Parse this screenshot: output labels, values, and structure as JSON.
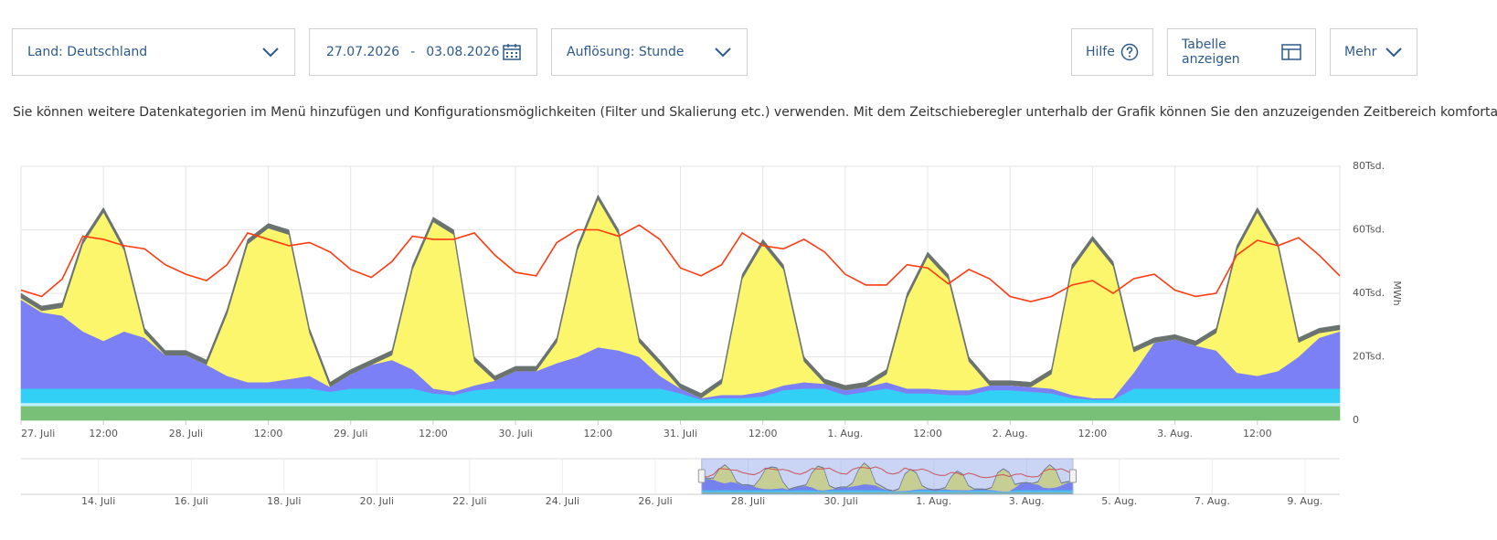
{
  "controls": {
    "country": "Land: Deutschland",
    "date_from": "27.07.2026",
    "date_separator": "-",
    "date_to": "03.08.2026",
    "resolution": "Auflösung: Stunde",
    "help": "Hilfe",
    "table": "Tabelle anzeigen",
    "more": "Mehr"
  },
  "info_text": "Sie können weitere Datenkategorien im Menü hinzufügen und Konfigurationsmöglichkeiten (Filter und Skalierung etc.) verwenden. Mit dem Zeitschieberegler unterhalb der Grafik können Sie den anzuzeigenden Zeitbereich komfortabel verschieben.",
  "chart_data": {
    "type": "area",
    "y_axis_label": "MWh",
    "grid": true,
    "stacked": true,
    "xlim": [
      0,
      192
    ],
    "xticks": [
      {
        "value": 0,
        "label": "27. Juli"
      },
      {
        "value": 12,
        "label": "12:00"
      },
      {
        "value": 24,
        "label": "28. Juli"
      },
      {
        "value": 36,
        "label": "12:00"
      },
      {
        "value": 48,
        "label": "29. Juli"
      },
      {
        "value": 60,
        "label": "12:00"
      },
      {
        "value": 72,
        "label": "30. Juli"
      },
      {
        "value": 84,
        "label": "12:00"
      },
      {
        "value": 96,
        "label": "31. Juli"
      },
      {
        "value": 108,
        "label": "12:00"
      },
      {
        "value": 120,
        "label": "1. Aug."
      },
      {
        "value": 132,
        "label": "12:00"
      },
      {
        "value": 144,
        "label": "2. Aug."
      },
      {
        "value": 156,
        "label": "12:00"
      },
      {
        "value": 168,
        "label": "3. Aug."
      },
      {
        "value": 180,
        "label": "12:00"
      }
    ],
    "ylim": [
      0,
      80000
    ],
    "yticks": [
      0,
      {
        "value": 20000,
        "label": "20Tsd."
      },
      {
        "value": 40000,
        "label": "40Tsd."
      },
      {
        "value": 60000,
        "label": "60Tsd."
      },
      {
        "value": 80000,
        "label": "80Tsd."
      }
    ],
    "x": [
      0,
      3,
      6,
      9,
      12,
      15,
      18,
      21,
      24,
      27,
      30,
      33,
      36,
      39,
      42,
      45,
      48,
      51,
      54,
      57,
      60,
      63,
      66,
      69,
      72,
      75,
      78,
      81,
      84,
      87,
      90,
      93,
      96,
      99,
      102,
      105,
      108,
      111,
      114,
      117,
      120,
      123,
      126,
      129,
      132,
      135,
      138,
      141,
      144,
      147,
      150,
      153,
      156,
      159,
      162,
      165,
      168,
      171,
      174,
      177,
      180,
      183,
      186,
      189,
      192
    ],
    "series": [
      {
        "type": "area",
        "color": "#78c078",
        "values": [
          4500,
          4500,
          4500,
          4500,
          4500,
          4500,
          4500,
          4500,
          4500,
          4500,
          4500,
          4500,
          4500,
          4500,
          4500,
          4500,
          4500,
          4500,
          4500,
          4500,
          4500,
          4500,
          4500,
          4500,
          4500,
          4500,
          4500,
          4500,
          4500,
          4500,
          4500,
          4500,
          4500,
          4500,
          4500,
          4500,
          4500,
          4500,
          4500,
          4500,
          4500,
          4500,
          4500,
          4500,
          4500,
          4500,
          4500,
          4500,
          4500,
          4500,
          4500,
          4500,
          4500,
          4500,
          4500,
          4500,
          4500,
          4500,
          4500,
          4500,
          4500,
          4500,
          4500,
          4500,
          4500
        ]
      },
      {
        "type": "area",
        "color": "#bdf0f6",
        "values": [
          1000,
          1000,
          1000,
          1000,
          1000,
          1000,
          1000,
          1000,
          1000,
          1000,
          1000,
          1000,
          1000,
          1000,
          1000,
          1000,
          1000,
          1000,
          1000,
          1000,
          1000,
          1000,
          1000,
          1000,
          1000,
          1000,
          1000,
          1000,
          1000,
          1000,
          1000,
          1000,
          1000,
          1000,
          1000,
          1000,
          1000,
          1000,
          1000,
          1000,
          1000,
          1000,
          1000,
          1000,
          1000,
          1000,
          1000,
          1000,
          1000,
          1000,
          1000,
          1000,
          1000,
          1000,
          1000,
          1000,
          1000,
          1000,
          1000,
          1000,
          1000,
          1000,
          1000,
          1000,
          1000
        ]
      },
      {
        "type": "area",
        "color": "#33d0f5",
        "values": [
          4500,
          4500,
          4500,
          4500,
          4500,
          4500,
          4500,
          4500,
          4500,
          4500,
          4500,
          4500,
          4500,
          4500,
          4500,
          3500,
          4500,
          4500,
          4500,
          4500,
          3000,
          2500,
          4000,
          4500,
          4500,
          4500,
          4500,
          4500,
          4500,
          4500,
          4500,
          4500,
          3000,
          1000,
          1500,
          1500,
          2000,
          4000,
          4500,
          4500,
          2500,
          3500,
          4500,
          3000,
          3000,
          2500,
          2500,
          4000,
          4000,
          3500,
          3000,
          1500,
          1000,
          1000,
          4500,
          4500,
          4500,
          4500,
          4500,
          4500,
          4500,
          4500,
          4500,
          4500,
          4500
        ]
      },
      {
        "type": "area",
        "color": "#7c80f6",
        "values": [
          28000,
          24000,
          23000,
          18000,
          15000,
          18000,
          16000,
          10500,
          10500,
          7500,
          4000,
          2000,
          2000,
          3000,
          4000,
          1500,
          4500,
          7500,
          9000,
          6000,
          1500,
          1000,
          1500,
          2500,
          5500,
          5500,
          8000,
          10000,
          13000,
          12000,
          10000,
          4000,
          1500,
          500,
          1000,
          1000,
          1500,
          1500,
          2000,
          1500,
          1500,
          1500,
          2000,
          1500,
          1500,
          1500,
          1500,
          1500,
          1500,
          1500,
          1500,
          1000,
          500,
          500,
          5000,
          14500,
          15500,
          13500,
          12000,
          5000,
          4000,
          5500,
          10000,
          16000,
          18000
        ]
      },
      {
        "type": "area",
        "color": "#fbf66c",
        "values": [
          500,
          500,
          2500,
          27500,
          40500,
          25500,
          1500,
          0,
          0,
          0,
          19500,
          43500,
          48500,
          45500,
          13500,
          0,
          0,
          0,
          1500,
          31500,
          52500,
          49500,
          7500,
          0,
          0,
          0,
          6500,
          33500,
          46500,
          36500,
          4500,
          3500,
          0,
          0,
          3500,
          36500,
          46500,
          36500,
          6500,
          0,
          0,
          0,
          2500,
          28500,
          41500,
          35000,
          9000,
          0,
          0,
          0,
          4500,
          39500,
          49500,
          41500,
          6500,
          0,
          0,
          0,
          5500,
          38500,
          51500,
          39000,
          4500,
          1500,
          500
        ]
      },
      {
        "type": "area",
        "color": "#6b7370",
        "values": [
          1500,
          1500,
          1500,
          1500,
          1500,
          1500,
          1500,
          1500,
          1500,
          1500,
          1500,
          1500,
          1500,
          1500,
          1500,
          1500,
          1500,
          1500,
          1500,
          1500,
          1500,
          1500,
          1500,
          1500,
          1500,
          1500,
          1500,
          1500,
          1500,
          1500,
          1500,
          1500,
          1500,
          1500,
          1500,
          1500,
          1500,
          1500,
          1500,
          1500,
          1500,
          1500,
          1500,
          1500,
          1500,
          1500,
          1500,
          1500,
          1500,
          1500,
          1500,
          1500,
          1500,
          1500,
          1500,
          1500,
          1500,
          1500,
          1500,
          1500,
          1500,
          1500,
          1500,
          1500,
          1500
        ]
      },
      {
        "type": "line",
        "color": "#ff3a10",
        "values": [
          41000,
          39000,
          44500,
          58000,
          57000,
          55000,
          54000,
          49000,
          46000,
          44000,
          49000,
          59000,
          57000,
          55000,
          56000,
          53000,
          47500,
          45000,
          50000,
          58000,
          57000,
          57000,
          59000,
          52000,
          46600,
          45500,
          56000,
          60000,
          60000,
          58000,
          61500,
          57000,
          48000,
          45500,
          49000,
          59000,
          55000,
          54000,
          57000,
          53000,
          46000,
          42600,
          42600,
          49000,
          48000,
          43000,
          47500,
          44600,
          39000,
          37400,
          39000,
          42600,
          44000,
          40000,
          44600,
          46000,
          41000,
          39000,
          40000,
          52000,
          56700,
          55000,
          57500,
          52000,
          45500
        ]
      }
    ],
    "navigator": {
      "xlim": [
        -352,
        330
      ],
      "xticks": [
        {
          "value": -312,
          "label": "14. Juli"
        },
        {
          "value": -264,
          "label": "16. Juli"
        },
        {
          "value": -216,
          "label": "18. Juli"
        },
        {
          "value": -168,
          "label": "20. Juli"
        },
        {
          "value": -120,
          "label": "22. Juli"
        },
        {
          "value": -72,
          "label": "24. Juli"
        },
        {
          "value": -24,
          "label": "26. Juli"
        },
        {
          "value": 24,
          "label": "28. Juli"
        },
        {
          "value": 72,
          "label": "30. Juli"
        },
        {
          "value": 120,
          "label": "1. Aug."
        },
        {
          "value": 168,
          "label": "3. Aug."
        },
        {
          "value": 216,
          "label": "5. Aug."
        },
        {
          "value": 264,
          "label": "7. Aug."
        },
        {
          "value": 312,
          "label": "9. Aug."
        }
      ]
    }
  }
}
